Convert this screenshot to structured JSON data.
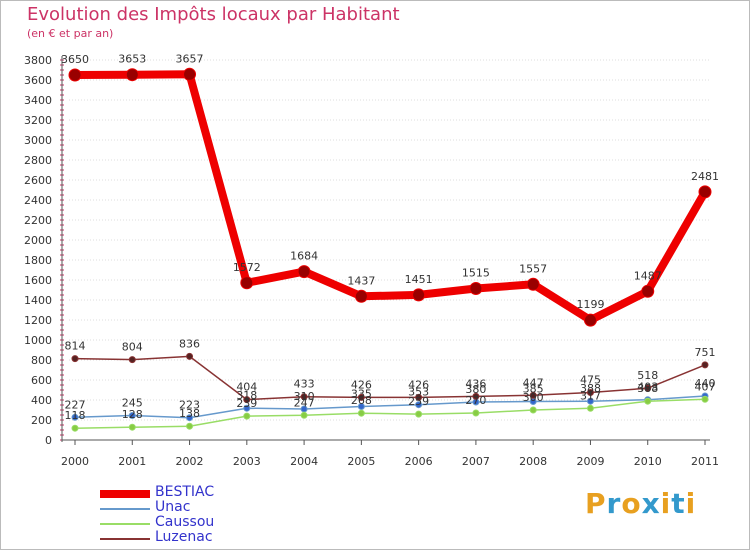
{
  "title": "Evolution des Impôts locaux par Habitant",
  "subtitle": "(en € et par an)",
  "brand": {
    "text": "Proxiti",
    "colors": [
      "#e8a020",
      "#3399cc",
      "#e8a020",
      "#3399cc",
      "#e8a020",
      "#3399cc",
      "#e8a020"
    ]
  },
  "chart_data": {
    "type": "line",
    "categories": [
      "2000",
      "2001",
      "2002",
      "2003",
      "2004",
      "2005",
      "2006",
      "2007",
      "2008",
      "2009",
      "2010",
      "2011"
    ],
    "ylim": [
      0,
      3800
    ],
    "yticks": [
      0,
      200,
      400,
      600,
      800,
      1000,
      1200,
      1400,
      1600,
      1800,
      2000,
      2200,
      2400,
      2600,
      2800,
      3000,
      3200,
      3400,
      3600,
      3800
    ],
    "series": [
      {
        "name": "BESTIAC",
        "color": "#ee0000",
        "marker": "#990000",
        "width": 8,
        "r": 6,
        "values": [
          3650,
          3653,
          3657,
          1572,
          1684,
          1437,
          1451,
          1515,
          1557,
          1199,
          1487,
          2481
        ],
        "labels": [
          "3650",
          "3653",
          "3657",
          "1572",
          "1684",
          "1437",
          "1451",
          "1515",
          "1557",
          "1199",
          "1487",
          "2481"
        ]
      },
      {
        "name": "Unac",
        "color": "#6699cc",
        "marker": "#3366cc",
        "width": 1.5,
        "r": 3,
        "values": [
          227,
          245,
          223,
          318,
          310,
          335,
          353,
          380,
          385,
          388,
          403,
          440
        ],
        "labels": [
          "227",
          "245",
          "223",
          "318",
          "310",
          "335",
          "353",
          "380",
          "385",
          "388",
          "403",
          "440"
        ]
      },
      {
        "name": "Caussou",
        "color": "#99dd66",
        "marker": "#88cc44",
        "width": 1.5,
        "r": 3,
        "values": [
          118,
          128,
          138,
          239,
          247,
          268,
          259,
          270,
          300,
          317,
          388,
          407
        ],
        "labels": [
          "118",
          "128",
          "138",
          "239",
          "247",
          "268",
          "259",
          "270",
          "300",
          "317",
          "388",
          "407"
        ]
      },
      {
        "name": "Luzenac",
        "color": "#883333",
        "marker": "#552222",
        "width": 1.5,
        "r": 3,
        "values": [
          814,
          804,
          836,
          404,
          433,
          426,
          426,
          436,
          447,
          475,
          518,
          751
        ],
        "labels": [
          "814",
          "804",
          "836",
          "404",
          "433",
          "426",
          "426",
          "436",
          "447",
          "475",
          "518",
          "751"
        ]
      }
    ]
  }
}
